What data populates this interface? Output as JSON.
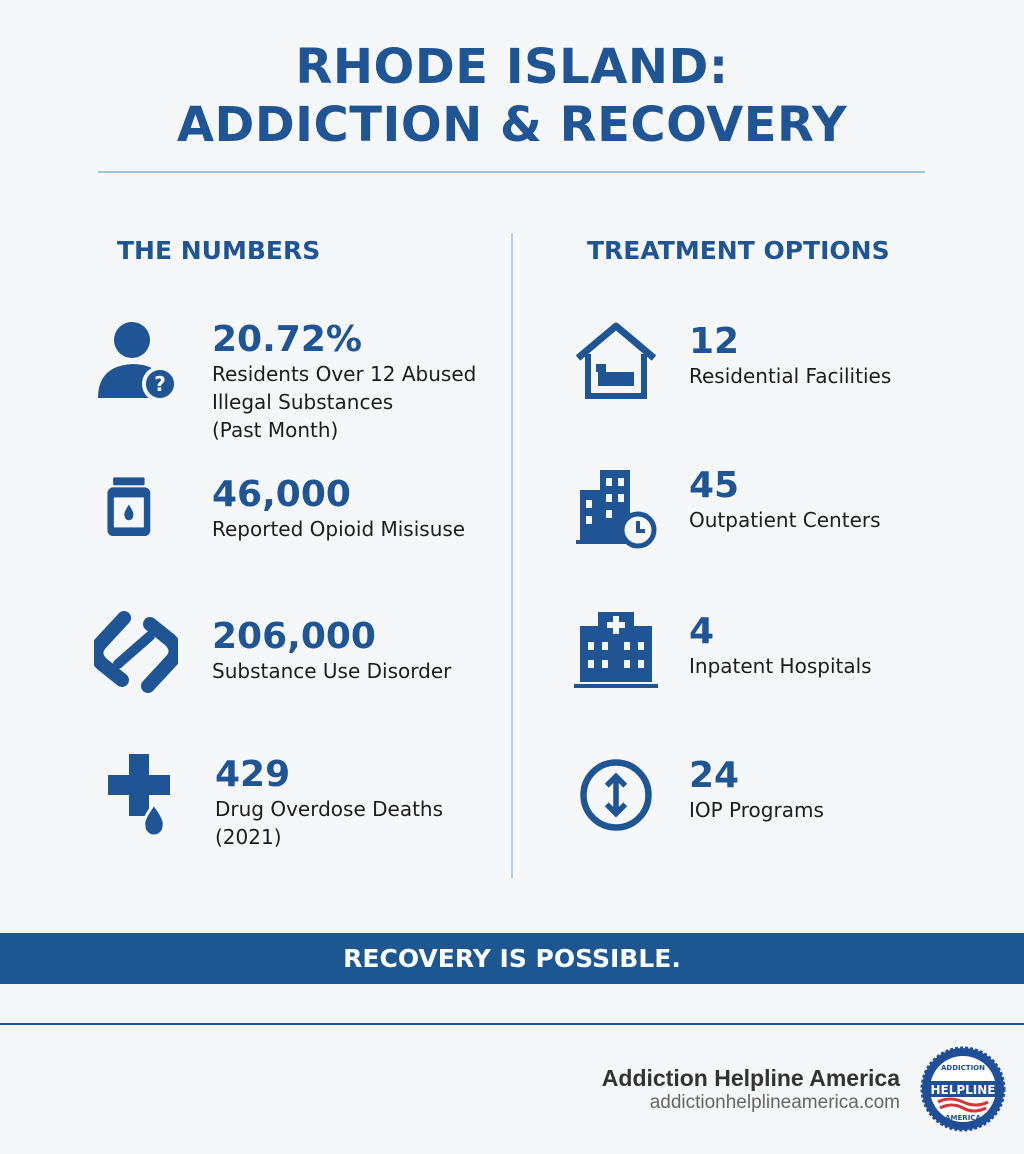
{
  "title": {
    "line1": "RHODE ISLAND:",
    "line2": "ADDICTION & RECOVERY"
  },
  "numbers": {
    "heading": "THE NUMBERS",
    "items": [
      {
        "icon": "person-question-icon",
        "value": "20.72%",
        "label_lines": [
          "Residents Over 12 Abused",
          "Illegal Substances",
          "(Past Month)"
        ]
      },
      {
        "icon": "medicine-bottle-icon",
        "value": "46,000",
        "label_lines": [
          "Reported Opioid Misisuse"
        ]
      },
      {
        "icon": "linked-hands-icon",
        "value": "206,000",
        "label_lines": [
          "Substance Use Disorder"
        ]
      },
      {
        "icon": "medical-cross-drop-icon",
        "value": "429",
        "label_lines": [
          "Drug Overdose Deaths",
          "(2021)"
        ]
      }
    ]
  },
  "treatment": {
    "heading": "TREATMENT OPTIONS",
    "items": [
      {
        "icon": "house-bed-icon",
        "value": "12",
        "label_lines": [
          "Residential Facilities"
        ]
      },
      {
        "icon": "building-clock-icon",
        "value": "45",
        "label_lines": [
          "Outpatient Centers"
        ]
      },
      {
        "icon": "hospital-icon",
        "value": "4",
        "label_lines": [
          "Inpatent Hospitals"
        ]
      },
      {
        "icon": "up-down-arrows-circle-icon",
        "value": "24",
        "label_lines": [
          "IOP Programs"
        ]
      }
    ]
  },
  "banner": "RECOVERY IS POSSIBLE.",
  "footer": {
    "name": "Addiction Helpline America",
    "url": "addictionhelplineamerica.com",
    "logo_text": [
      "ADDICTION",
      "HELPLINE",
      "AMERICA"
    ]
  },
  "colors": {
    "primary": "#1f5594",
    "banner": "#1c5791",
    "accent_red": "#d9333b"
  }
}
